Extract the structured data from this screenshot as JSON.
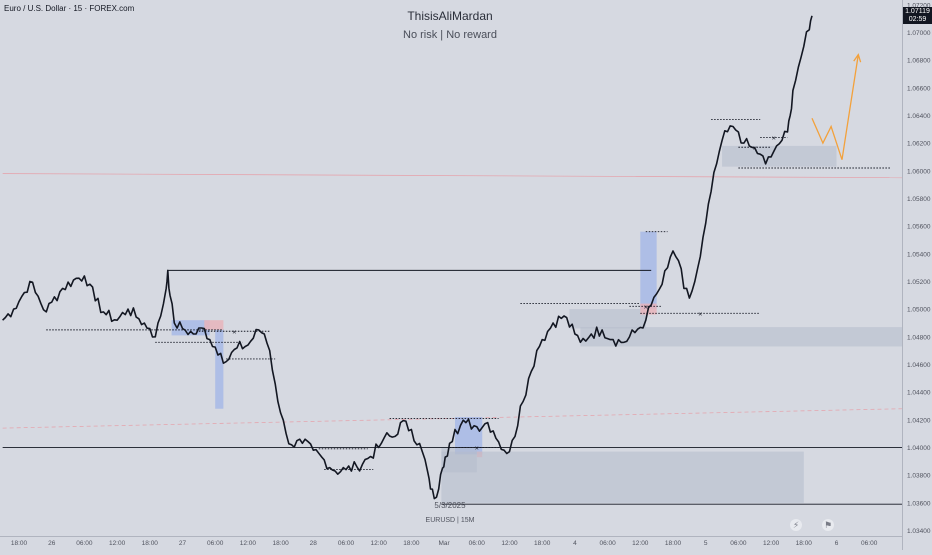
{
  "header": {
    "symbol_title": "Euro / U.S. Dollar · 15 · FOREX.com",
    "watermark_title": "ThisisAliMardan",
    "watermark_subtitle": "No risk | No reward"
  },
  "footer": {
    "date_label": "5/3/2025",
    "symbol_label": "EURUSD | 15M",
    "icons": [
      "lightning-icon",
      "us-flag-icon"
    ]
  },
  "price_tag": {
    "price": "1.07119",
    "countdown": "02:59",
    "bg_color": "#131722"
  },
  "colors": {
    "background": "#d6d9e1",
    "candle": "#131722",
    "forecast": "#f3a13b",
    "bullish_zone": "#a7b8e6",
    "bearish_zone": "#e8b4bb",
    "gray_zone": "#b5bbcc",
    "mid_line": "#e89aa3"
  },
  "chart_data": {
    "type": "line",
    "symbol": "EURUSD",
    "timeframe": "15",
    "y_axis": {
      "ticks": [
        "1.07200",
        "1.07000",
        "1.06800",
        "1.06600",
        "1.06400",
        "1.06200",
        "1.06000",
        "1.05800",
        "1.05600",
        "1.05400",
        "1.05200",
        "1.05000",
        "1.04800",
        "1.04600",
        "1.04400",
        "1.04200",
        "1.04000",
        "1.03800",
        "1.03600",
        "1.03400"
      ],
      "ylim": [
        1.0336,
        1.0722
      ]
    },
    "x_axis": {
      "ticks": [
        "18:00",
        "26",
        "06:00",
        "12:00",
        "18:00",
        "27",
        "06:00",
        "12:00",
        "18:00",
        "28",
        "06:00",
        "12:00",
        "18:00",
        "Mar",
        "06:00",
        "12:00",
        "18:00",
        "4",
        "06:00",
        "12:00",
        "18:00",
        "5",
        "06:00",
        "12:00",
        "18:00",
        "6",
        "06:00"
      ],
      "unit_note": "hours from start (first tick = 0)",
      "tick_hours": [
        0,
        6,
        12,
        18,
        24,
        30,
        36,
        42,
        48,
        54,
        60,
        66,
        72,
        78,
        84,
        90,
        96,
        102,
        108,
        114,
        120,
        126,
        132,
        138,
        144,
        150,
        156
      ]
    },
    "series": [
      {
        "points": [
          [
            -3,
            1.0492
          ],
          [
            -1,
            1.05
          ],
          [
            1,
            1.0512
          ],
          [
            2,
            1.052
          ],
          [
            3,
            1.0512
          ],
          [
            5,
            1.0498
          ],
          [
            6,
            1.0505
          ],
          [
            8,
            1.0515
          ],
          [
            10,
            1.0521
          ],
          [
            12,
            1.0524
          ],
          [
            13,
            1.0518
          ],
          [
            14,
            1.0506
          ],
          [
            16,
            1.0496
          ],
          [
            18,
            1.0492
          ],
          [
            20,
            1.05
          ],
          [
            22,
            1.0493
          ],
          [
            24,
            1.0486
          ],
          [
            25,
            1.048
          ],
          [
            26,
            1.0495
          ],
          [
            27,
            1.0515
          ],
          [
            27.3,
            1.0528
          ],
          [
            27.7,
            1.051
          ],
          [
            28.5,
            1.049
          ],
          [
            30,
            1.0486
          ],
          [
            32,
            1.0482
          ],
          [
            34,
            1.0486
          ],
          [
            35,
            1.0478
          ],
          [
            37,
            1.0468
          ],
          [
            38,
            1.0462
          ],
          [
            40,
            1.0472
          ],
          [
            42,
            1.0474
          ],
          [
            44,
            1.0485
          ],
          [
            45,
            1.0482
          ],
          [
            46,
            1.047
          ],
          [
            47,
            1.0446
          ],
          [
            48,
            1.0425
          ],
          [
            49,
            1.041
          ],
          [
            50,
            1.0402
          ],
          [
            52,
            1.0403
          ],
          [
            54,
            1.0398
          ],
          [
            56,
            1.0391
          ],
          [
            58,
            1.0383
          ],
          [
            60,
            1.0384
          ],
          [
            62,
            1.0386
          ],
          [
            64,
            1.0392
          ],
          [
            66,
            1.04
          ],
          [
            67,
            1.0407
          ],
          [
            69,
            1.0408
          ],
          [
            70,
            1.0418
          ],
          [
            72,
            1.0413
          ],
          [
            74,
            1.0397
          ],
          [
            75,
            1.0382
          ],
          [
            75.5,
            1.037
          ],
          [
            76.2,
            1.0363
          ],
          [
            77,
            1.037
          ],
          [
            77.7,
            1.0385
          ],
          [
            78.2,
            1.0393
          ],
          [
            79,
            1.0403
          ],
          [
            80,
            1.0413
          ],
          [
            82,
            1.0418
          ],
          [
            84,
            1.0415
          ],
          [
            86,
            1.0418
          ],
          [
            87,
            1.0412
          ],
          [
            88,
            1.0404
          ],
          [
            89,
            1.0398
          ],
          [
            90,
            1.0397
          ],
          [
            91,
            1.0408
          ],
          [
            92,
            1.043
          ],
          [
            94,
            1.0455
          ],
          [
            95,
            1.047
          ],
          [
            96,
            1.0478
          ],
          [
            98,
            1.049
          ],
          [
            100,
            1.0495
          ],
          [
            102,
            1.0482
          ],
          [
            103,
            1.0476
          ],
          [
            105,
            1.0482
          ],
          [
            107,
            1.0485
          ],
          [
            109,
            1.0478
          ],
          [
            111,
            1.0476
          ],
          [
            113,
            1.0483
          ],
          [
            115,
            1.0492
          ],
          [
            116,
            1.0503
          ],
          [
            117,
            1.0511
          ],
          [
            118,
            1.0518
          ],
          [
            119,
            1.053
          ],
          [
            120,
            1.0542
          ],
          [
            121,
            1.0535
          ],
          [
            122,
            1.0515
          ],
          [
            123,
            1.0508
          ],
          [
            124,
            1.052
          ],
          [
            125,
            1.0538
          ],
          [
            126,
            1.0562
          ],
          [
            127,
            1.0585
          ],
          [
            128,
            1.0605
          ],
          [
            129,
            1.0622
          ],
          [
            131,
            1.0632
          ],
          [
            132,
            1.0628
          ],
          [
            133,
            1.062
          ],
          [
            134,
            1.0618
          ],
          [
            136,
            1.0612
          ],
          [
            137,
            1.0605
          ],
          [
            138,
            1.061
          ],
          [
            139,
            1.0618
          ],
          [
            140,
            1.0622
          ],
          [
            141,
            1.0628
          ],
          [
            141.5,
            1.064
          ],
          [
            142,
            1.0658
          ],
          [
            143,
            1.0675
          ],
          [
            144,
            1.069
          ],
          [
            145,
            1.0702
          ],
          [
            145.5,
            1.0712
          ]
        ]
      },
      {
        "points": [
          [
            145.5,
            1.0638
          ],
          [
            147.5,
            1.062
          ],
          [
            149,
            1.0632
          ],
          [
            151,
            1.0608
          ],
          [
            154,
            1.0684
          ]
        ]
      }
    ],
    "zones": [
      {
        "x": [
          28,
          35
        ],
        "y": [
          1.0481,
          1.0492
        ],
        "kind": "bullish"
      },
      {
        "x": [
          34,
          37.5
        ],
        "y": [
          1.0485,
          1.0492
        ],
        "kind": "bearish"
      },
      {
        "x": [
          36,
          37.5
        ],
        "y": [
          1.0428,
          1.0485
        ],
        "kind": "bullish"
      },
      {
        "x": [
          80,
          85
        ],
        "y": [
          1.0395,
          1.0422
        ],
        "kind": "bullish"
      },
      {
        "x": [
          84,
          85
        ],
        "y": [
          1.0393,
          1.0397
        ],
        "kind": "bearish"
      },
      {
        "x": [
          77.5,
          84
        ],
        "y": [
          1.0382,
          1.04
        ],
        "kind": "gray"
      },
      {
        "x": [
          77.5,
          144
        ],
        "y": [
          1.036,
          1.0397
        ],
        "kind": "gray"
      },
      {
        "x": [
          103,
          165
        ],
        "y": [
          1.0473,
          1.0487
        ],
        "kind": "gray"
      },
      {
        "x": [
          101,
          115
        ],
        "y": [
          1.0486,
          1.05
        ],
        "kind": "gray"
      },
      {
        "x": [
          114,
          117
        ],
        "y": [
          1.05,
          1.0556
        ],
        "kind": "bullish"
      },
      {
        "x": [
          114,
          117
        ],
        "y": [
          1.0496,
          1.0504
        ],
        "kind": "bearish"
      },
      {
        "x": [
          129,
          150
        ],
        "y": [
          1.0603,
          1.0618
        ],
        "kind": "gray"
      }
    ],
    "levels": [
      {
        "x": [
          -3,
          165
        ],
        "y": 1.04,
        "style": "solid"
      },
      {
        "x": [
          27.3,
          116
        ],
        "y": 1.0528,
        "style": "solid"
      },
      {
        "x": [
          77.5,
          165
        ],
        "y": 1.0359,
        "style": "solid"
      },
      {
        "x": [
          5,
          37.5
        ],
        "y": 1.0485,
        "style": "dotted"
      },
      {
        "x": [
          25,
          41
        ],
        "y": 1.0476,
        "style": "dotted"
      },
      {
        "x": [
          38,
          47
        ],
        "y": 1.0464,
        "style": "dotted"
      },
      {
        "x": [
          33,
          46
        ],
        "y": 1.0484,
        "style": "dotted",
        "mark": "x"
      },
      {
        "x": [
          55,
          64
        ],
        "y": 1.0399,
        "style": "dotted"
      },
      {
        "x": [
          56,
          65
        ],
        "y": 1.0384,
        "style": "dotted"
      },
      {
        "x": [
          68,
          88
        ],
        "y": 1.0421,
        "style": "dotted"
      },
      {
        "x": [
          79,
          89
        ],
        "y": 1.04,
        "style": "dotted",
        "mark": "x"
      },
      {
        "x": [
          92,
          114
        ],
        "y": 1.0504,
        "style": "dotted"
      },
      {
        "x": [
          114,
          136
        ],
        "y": 1.0497,
        "style": "dotted",
        "mark": "x"
      },
      {
        "x": [
          112,
          118
        ],
        "y": 1.0502,
        "style": "dotted",
        "mark": "x"
      },
      {
        "x": [
          115,
          119
        ],
        "y": 1.0556,
        "style": "dotted"
      },
      {
        "x": [
          127,
          136
        ],
        "y": 1.0637,
        "style": "dotted"
      },
      {
        "x": [
          136,
          141
        ],
        "y": 1.0624,
        "style": "dotted",
        "mark": "x"
      },
      {
        "x": [
          132,
          138
        ],
        "y": 1.0617,
        "style": "dotted",
        "mark": "x"
      },
      {
        "x": [
          132,
          160
        ],
        "y": 1.0602,
        "style": "dotted"
      }
    ],
    "guides": [
      {
        "from": [
          -3,
          1.0598
        ],
        "to": [
          165,
          1.0595
        ],
        "color": "#e89aa3",
        "style": "thin"
      },
      {
        "from": [
          -3,
          1.0414
        ],
        "to": [
          165,
          1.0428
        ],
        "color": "#e89aa3",
        "style": "dashed"
      }
    ],
    "grid": false,
    "legend": "none"
  }
}
